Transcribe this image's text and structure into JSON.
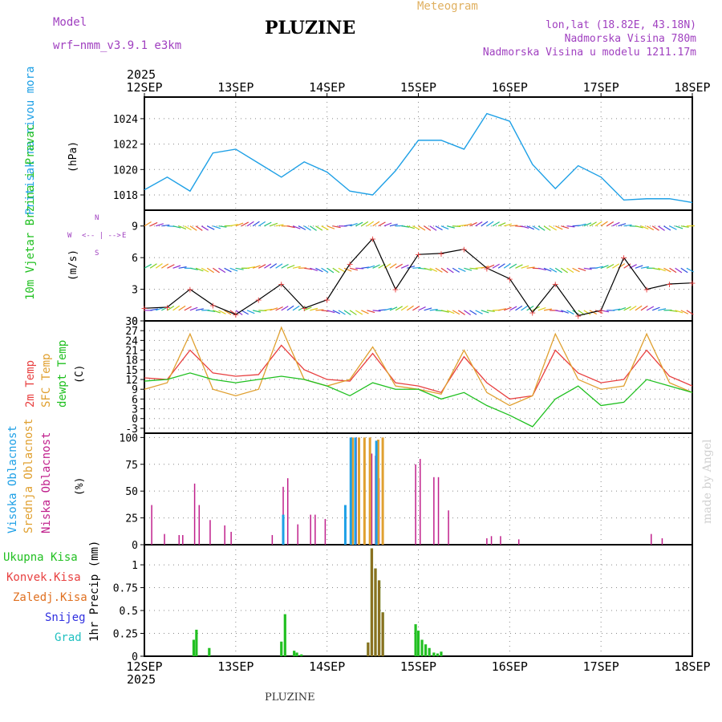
{
  "header": {
    "model_label": "Model",
    "model_name": "wrf−nmm_v3.9.1  e3km",
    "station": "PLUZINE",
    "meteogram": "Meteogram",
    "lonlat": "lon,lat (18.82E, 43.18N)",
    "altitude": "Nadmorska Visina 780m",
    "model_altitude": "Nadmorska Visina u modelu 1211.17m",
    "footer_station": "PLUZINE",
    "watermark": "made by Angel",
    "year": "2025",
    "compass": [
      "N",
      "E",
      "S",
      "W"
    ]
  },
  "colors": {
    "pressure": "#1ea0e6",
    "t2m": "#e84040",
    "tsfc": "#e0a030",
    "dewpt": "#20c020",
    "high": "#1ea0e6",
    "mid": "#e0a030",
    "low": "#c0208c",
    "total": "#22c022",
    "conv": "#e84040",
    "snow": "#3030e0",
    "model": "#a040c0",
    "meteogram": "#e0b060",
    "watermark": "#d0d0d0"
  },
  "chart_data": [
    {
      "type": "line",
      "name": "pressure",
      "ylabel": "(hPa)",
      "title": "Pritisak na nivou mora",
      "yticks": [
        1018,
        1020,
        1022,
        1024
      ],
      "ylim": [
        1016.8,
        1025.7
      ],
      "x_days": [
        "12SEP",
        "13SEP",
        "14SEP",
        "15SEP",
        "16SEP",
        "17SEP",
        "18SEP"
      ],
      "x": [
        0,
        0.25,
        0.5,
        0.75,
        1,
        1.25,
        1.5,
        1.75,
        2,
        2.25,
        2.5,
        2.75,
        3,
        3.25,
        3.5,
        3.75,
        4,
        4.25,
        4.5,
        4.75,
        5,
        5.25,
        5.5,
        5.75,
        6
      ],
      "series": [
        {
          "name": "MSLP",
          "values": [
            1018.4,
            1019.4,
            1018.3,
            1021.3,
            1021.6,
            1020.5,
            1019.4,
            1020.6,
            1019.8,
            1018.3,
            1018.0,
            1019.9,
            1022.3,
            1022.3,
            1021.6,
            1024.4,
            1023.8,
            1020.4,
            1018.5,
            1020.3,
            1019.4,
            1017.6,
            1017.7,
            1017.7,
            1017.4
          ]
        }
      ]
    },
    {
      "type": "line",
      "name": "wind",
      "ylabel": "(m/s)",
      "title": "10m Vjetar Brzina i Pravac",
      "yticks": [
        0,
        3,
        6,
        9
      ],
      "ylim": [
        0,
        10.5
      ],
      "x": [
        0,
        0.25,
        0.5,
        0.75,
        1,
        1.25,
        1.5,
        1.75,
        2,
        2.25,
        2.5,
        2.75,
        3,
        3.25,
        3.5,
        3.75,
        4,
        4.25,
        4.5,
        4.75,
        5,
        5.25,
        5.5,
        5.75,
        6
      ],
      "series": [
        {
          "name": "speed",
          "values": [
            1.2,
            1.3,
            3.0,
            1.5,
            0.6,
            2.0,
            3.5,
            1.2,
            2.0,
            5.4,
            7.8,
            3.0,
            6.3,
            6.4,
            6.8,
            5.0,
            4.0,
            0.8,
            3.5,
            0.5,
            1.0,
            6.0,
            3.0,
            3.5,
            3.6
          ]
        }
      ],
      "wind_rows": [
        1,
        5,
        9
      ]
    },
    {
      "type": "line",
      "name": "temperature",
      "ylabel": "(C)",
      "titles": [
        "2m Temp",
        "SFC Temp",
        "dewpt Temp"
      ],
      "yticks": [
        -3,
        0,
        3,
        6,
        9,
        12,
        15,
        18,
        21,
        24,
        27,
        30
      ],
      "ylim": [
        -4.5,
        30
      ],
      "x": [
        0,
        0.25,
        0.5,
        0.75,
        1,
        1.25,
        1.5,
        1.75,
        2,
        2.25,
        2.5,
        2.75,
        3,
        3.25,
        3.5,
        3.75,
        4,
        4.25,
        4.5,
        4.75,
        5,
        5.25,
        5.5,
        5.75,
        6
      ],
      "series": [
        {
          "name": "2m Temp",
          "values": [
            12.5,
            12.0,
            21.0,
            14.0,
            13.0,
            13.5,
            22.5,
            15.0,
            12.0,
            11.5,
            20.0,
            11.0,
            10.0,
            8.0,
            19.0,
            11.0,
            6.0,
            7.0,
            21.0,
            14.0,
            11.0,
            12.0,
            21.0,
            13.0,
            10.0
          ]
        },
        {
          "name": "SFC Temp",
          "values": [
            9.0,
            11.0,
            26.0,
            9.0,
            7.0,
            9.0,
            28.0,
            12.0,
            10.0,
            12.0,
            22.0,
            10.0,
            9.0,
            7.5,
            21.0,
            8.0,
            4.0,
            7.0,
            26.0,
            12.0,
            9.0,
            10.0,
            26.0,
            11.0,
            8.0
          ]
        },
        {
          "name": "dewpt Temp",
          "values": [
            11.5,
            12.0,
            14.0,
            12.0,
            11.0,
            12.0,
            13.0,
            12.0,
            10.0,
            7.0,
            11.0,
            9.0,
            9.0,
            6.0,
            8.0,
            4.0,
            1.0,
            -2.5,
            6.0,
            10.0,
            4.0,
            5.0,
            12.0,
            10.0,
            8.0
          ]
        }
      ]
    },
    {
      "type": "bar",
      "name": "cloud",
      "ylabel": "(%)",
      "titles": [
        "Visoka Oblacnost",
        "Srednja Oblacnost",
        "Niska Oblacnost"
      ],
      "yticks": [
        0,
        25,
        50,
        75,
        100
      ],
      "ylim": [
        0,
        104
      ],
      "series": [
        {
          "name": "low",
          "x": [
            0.08,
            0.22,
            0.38,
            0.42,
            0.55,
            0.6,
            0.72,
            0.88,
            0.95,
            1.4,
            1.52,
            1.57,
            1.68,
            1.82,
            1.87,
            1.98,
            2.32,
            2.49,
            2.53,
            2.57,
            2.97,
            3.02,
            3.17,
            3.22,
            3.33,
            3.75,
            3.8,
            3.9,
            4.1,
            5.55,
            5.67
          ],
          "values": [
            37,
            10,
            9,
            9,
            57,
            37,
            23,
            18,
            12,
            9,
            54,
            62,
            19,
            28,
            28,
            24,
            100,
            85,
            83,
            62,
            75,
            80,
            63,
            63,
            32,
            6,
            8,
            8,
            5,
            10,
            6
          ]
        },
        {
          "name": "mid",
          "x": [
            2.28,
            2.35,
            2.41,
            2.47,
            2.56,
            2.61
          ],
          "values": [
            100,
            100,
            100,
            100,
            98,
            100
          ]
        },
        {
          "name": "high",
          "x": [
            1.52,
            2.2,
            2.26,
            2.31,
            2.54
          ],
          "values": [
            28,
            37,
            100,
            100,
            97
          ]
        }
      ]
    },
    {
      "type": "bar",
      "name": "precip",
      "ylabel": "1hr Precip (mm)",
      "titles": [
        "Ukupna Kisa",
        "Konvek.Kisa",
        "Zaledj.Kisa",
        "Snijeg",
        "Grad"
      ],
      "yticks": [
        "0",
        "0.25",
        "0.5",
        "0.75",
        "1"
      ],
      "ylim": [
        0,
        1.22
      ],
      "series": [
        {
          "name": "total",
          "x": [
            0.54,
            0.57,
            0.71,
            1.5,
            1.54,
            1.64,
            1.67,
            1.72,
            2.45,
            2.49,
            2.53,
            2.57,
            2.61,
            2.97,
            3.0,
            3.04,
            3.08,
            3.12,
            3.17,
            3.21,
            3.25
          ],
          "values": [
            0.18,
            0.29,
            0.09,
            0.16,
            0.46,
            0.06,
            0.04,
            0.02,
            0.15,
            1.18,
            0.96,
            0.83,
            0.48,
            0.35,
            0.28,
            0.18,
            0.13,
            0.09,
            0.04,
            0.03,
            0.05
          ]
        },
        {
          "name": "conv",
          "x": [
            2.45,
            2.49,
            2.53,
            2.57,
            2.61
          ],
          "values": [
            0.15,
            1.18,
            0.96,
            0.83,
            0.48
          ]
        }
      ]
    }
  ]
}
